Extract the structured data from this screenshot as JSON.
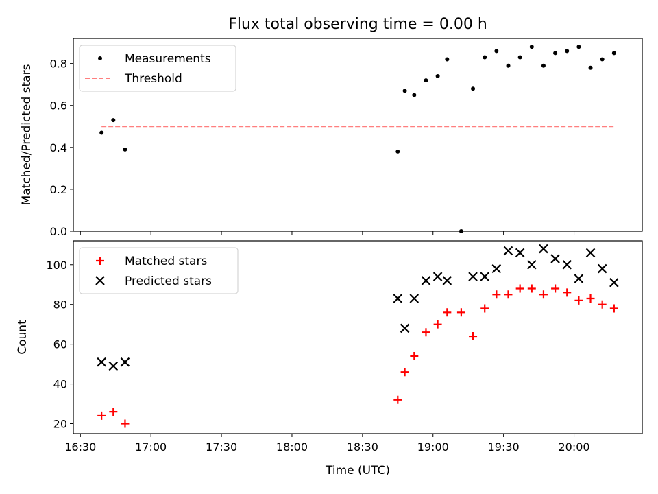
{
  "chart_data": [
    {
      "type": "scatter",
      "title": "Flux total observing time = 0.00 h",
      "ylabel": "Matched/Predicted stars",
      "xlim": [
        "16:27",
        "20:29"
      ],
      "ylim": [
        0.0,
        0.92
      ],
      "yticks": [
        "0.0",
        "0.2",
        "0.4",
        "0.6",
        "0.8"
      ],
      "grid": false,
      "legend_location": "upper left",
      "series": [
        {
          "name": "Measurements",
          "marker": "dot",
          "color": "#000000",
          "points": [
            [
              "16:39",
              0.47
            ],
            [
              "16:44",
              0.53
            ],
            [
              "16:49",
              0.39
            ],
            [
              "18:45",
              0.38
            ],
            [
              "18:48",
              0.67
            ],
            [
              "18:52",
              0.65
            ],
            [
              "18:57",
              0.72
            ],
            [
              "19:02",
              0.74
            ],
            [
              "19:06",
              0.82
            ],
            [
              "19:12",
              0.0
            ],
            [
              "19:17",
              0.68
            ],
            [
              "19:22",
              0.83
            ],
            [
              "19:27",
              0.86
            ],
            [
              "19:32",
              0.79
            ],
            [
              "19:37",
              0.83
            ],
            [
              "19:42",
              0.88
            ],
            [
              "19:47",
              0.79
            ],
            [
              "19:52",
              0.85
            ],
            [
              "19:57",
              0.86
            ],
            [
              "20:02",
              0.88
            ],
            [
              "20:07",
              0.78
            ],
            [
              "20:12",
              0.82
            ],
            [
              "20:17",
              0.85
            ]
          ]
        },
        {
          "name": "Threshold",
          "marker": "dashed-line",
          "color": "#ff7f7f",
          "points": [
            [
              "16:39",
              0.5
            ],
            [
              "20:17",
              0.5
            ]
          ]
        }
      ]
    },
    {
      "type": "scatter",
      "xlabel": "Time (UTC)",
      "ylabel": "Count",
      "xlim": [
        "16:27",
        "20:29"
      ],
      "ylim": [
        15,
        112
      ],
      "xticks": [
        "16:30",
        "17:00",
        "17:30",
        "18:00",
        "18:30",
        "19:00",
        "19:30",
        "20:00"
      ],
      "yticks": [
        "20",
        "40",
        "60",
        "80",
        "100"
      ],
      "grid": false,
      "legend_location": "upper left",
      "series": [
        {
          "name": "Matched stars",
          "marker": "plus",
          "color": "#ff0000",
          "points": [
            [
              "16:39",
              24
            ],
            [
              "16:44",
              26
            ],
            [
              "16:49",
              20
            ],
            [
              "18:45",
              32
            ],
            [
              "18:48",
              46
            ],
            [
              "18:52",
              54
            ],
            [
              "18:57",
              66
            ],
            [
              "19:02",
              70
            ],
            [
              "19:06",
              76
            ],
            [
              "19:12",
              76
            ],
            [
              "19:17",
              64
            ],
            [
              "19:22",
              78
            ],
            [
              "19:27",
              85
            ],
            [
              "19:32",
              85
            ],
            [
              "19:37",
              88
            ],
            [
              "19:42",
              88
            ],
            [
              "19:47",
              85
            ],
            [
              "19:52",
              88
            ],
            [
              "19:57",
              86
            ],
            [
              "20:02",
              82
            ],
            [
              "20:07",
              83
            ],
            [
              "20:12",
              80
            ],
            [
              "20:17",
              78
            ]
          ]
        },
        {
          "name": "Predicted stars",
          "marker": "x",
          "color": "#000000",
          "points": [
            [
              "16:39",
              51
            ],
            [
              "16:44",
              49
            ],
            [
              "16:49",
              51
            ],
            [
              "18:45",
              83
            ],
            [
              "18:48",
              68
            ],
            [
              "18:52",
              83
            ],
            [
              "18:57",
              92
            ],
            [
              "19:02",
              94
            ],
            [
              "19:06",
              92
            ],
            [
              "19:17",
              94
            ],
            [
              "19:22",
              94
            ],
            [
              "19:27",
              98
            ],
            [
              "19:32",
              107
            ],
            [
              "19:37",
              106
            ],
            [
              "19:42",
              100
            ],
            [
              "19:47",
              108
            ],
            [
              "19:52",
              103
            ],
            [
              "19:57",
              100
            ],
            [
              "20:02",
              93
            ],
            [
              "20:07",
              106
            ],
            [
              "20:12",
              98
            ],
            [
              "20:17",
              91
            ]
          ]
        }
      ]
    }
  ]
}
